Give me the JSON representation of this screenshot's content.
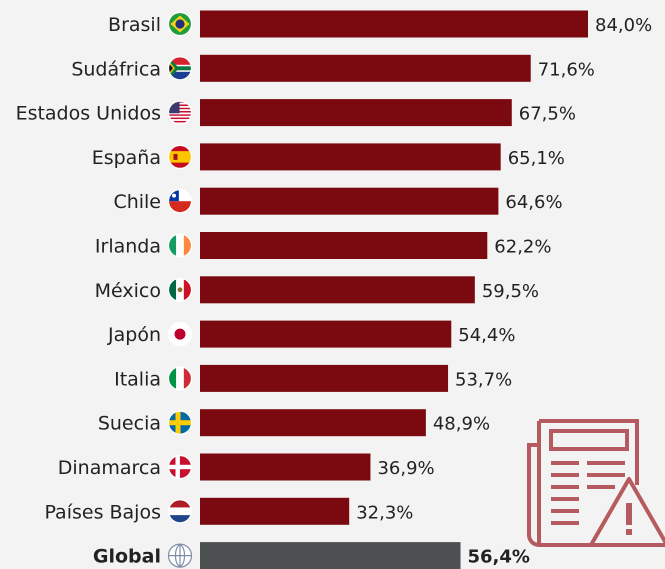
{
  "chart_data": {
    "type": "bar",
    "orientation": "horizontal",
    "categories": [
      "Brasil",
      "Sudáfrica",
      "Estados Unidos",
      "España",
      "Chile",
      "Irlanda",
      "México",
      "Japón",
      "Italia",
      "Suecia",
      "Dinamarca",
      "Países Bajos",
      "Global"
    ],
    "values": [
      84.0,
      71.6,
      67.5,
      65.1,
      64.6,
      62.2,
      59.5,
      54.4,
      53.7,
      48.9,
      36.9,
      32.3,
      56.4
    ],
    "value_labels": [
      "84,0%",
      "71,6%",
      "67,5%",
      "65,1%",
      "64,6%",
      "62,2%",
      "59,5%",
      "54,4%",
      "53,7%",
      "48,9%",
      "36,9%",
      "32,3%",
      "56,4%"
    ],
    "highlight_category": "Global",
    "flag_icons": [
      "brazil-flag-icon",
      "south-africa-flag-icon",
      "usa-flag-icon",
      "spain-flag-icon",
      "chile-flag-icon",
      "ireland-flag-icon",
      "mexico-flag-icon",
      "japan-flag-icon",
      "italy-flag-icon",
      "sweden-flag-icon",
      "denmark-flag-icon",
      "netherlands-flag-icon",
      "globe-icon"
    ],
    "xlim": [
      0,
      84.0
    ],
    "colors": {
      "bar": "#7a0a0f",
      "highlight_bar": "#4d5050",
      "illustration": "#b55a5e"
    }
  }
}
